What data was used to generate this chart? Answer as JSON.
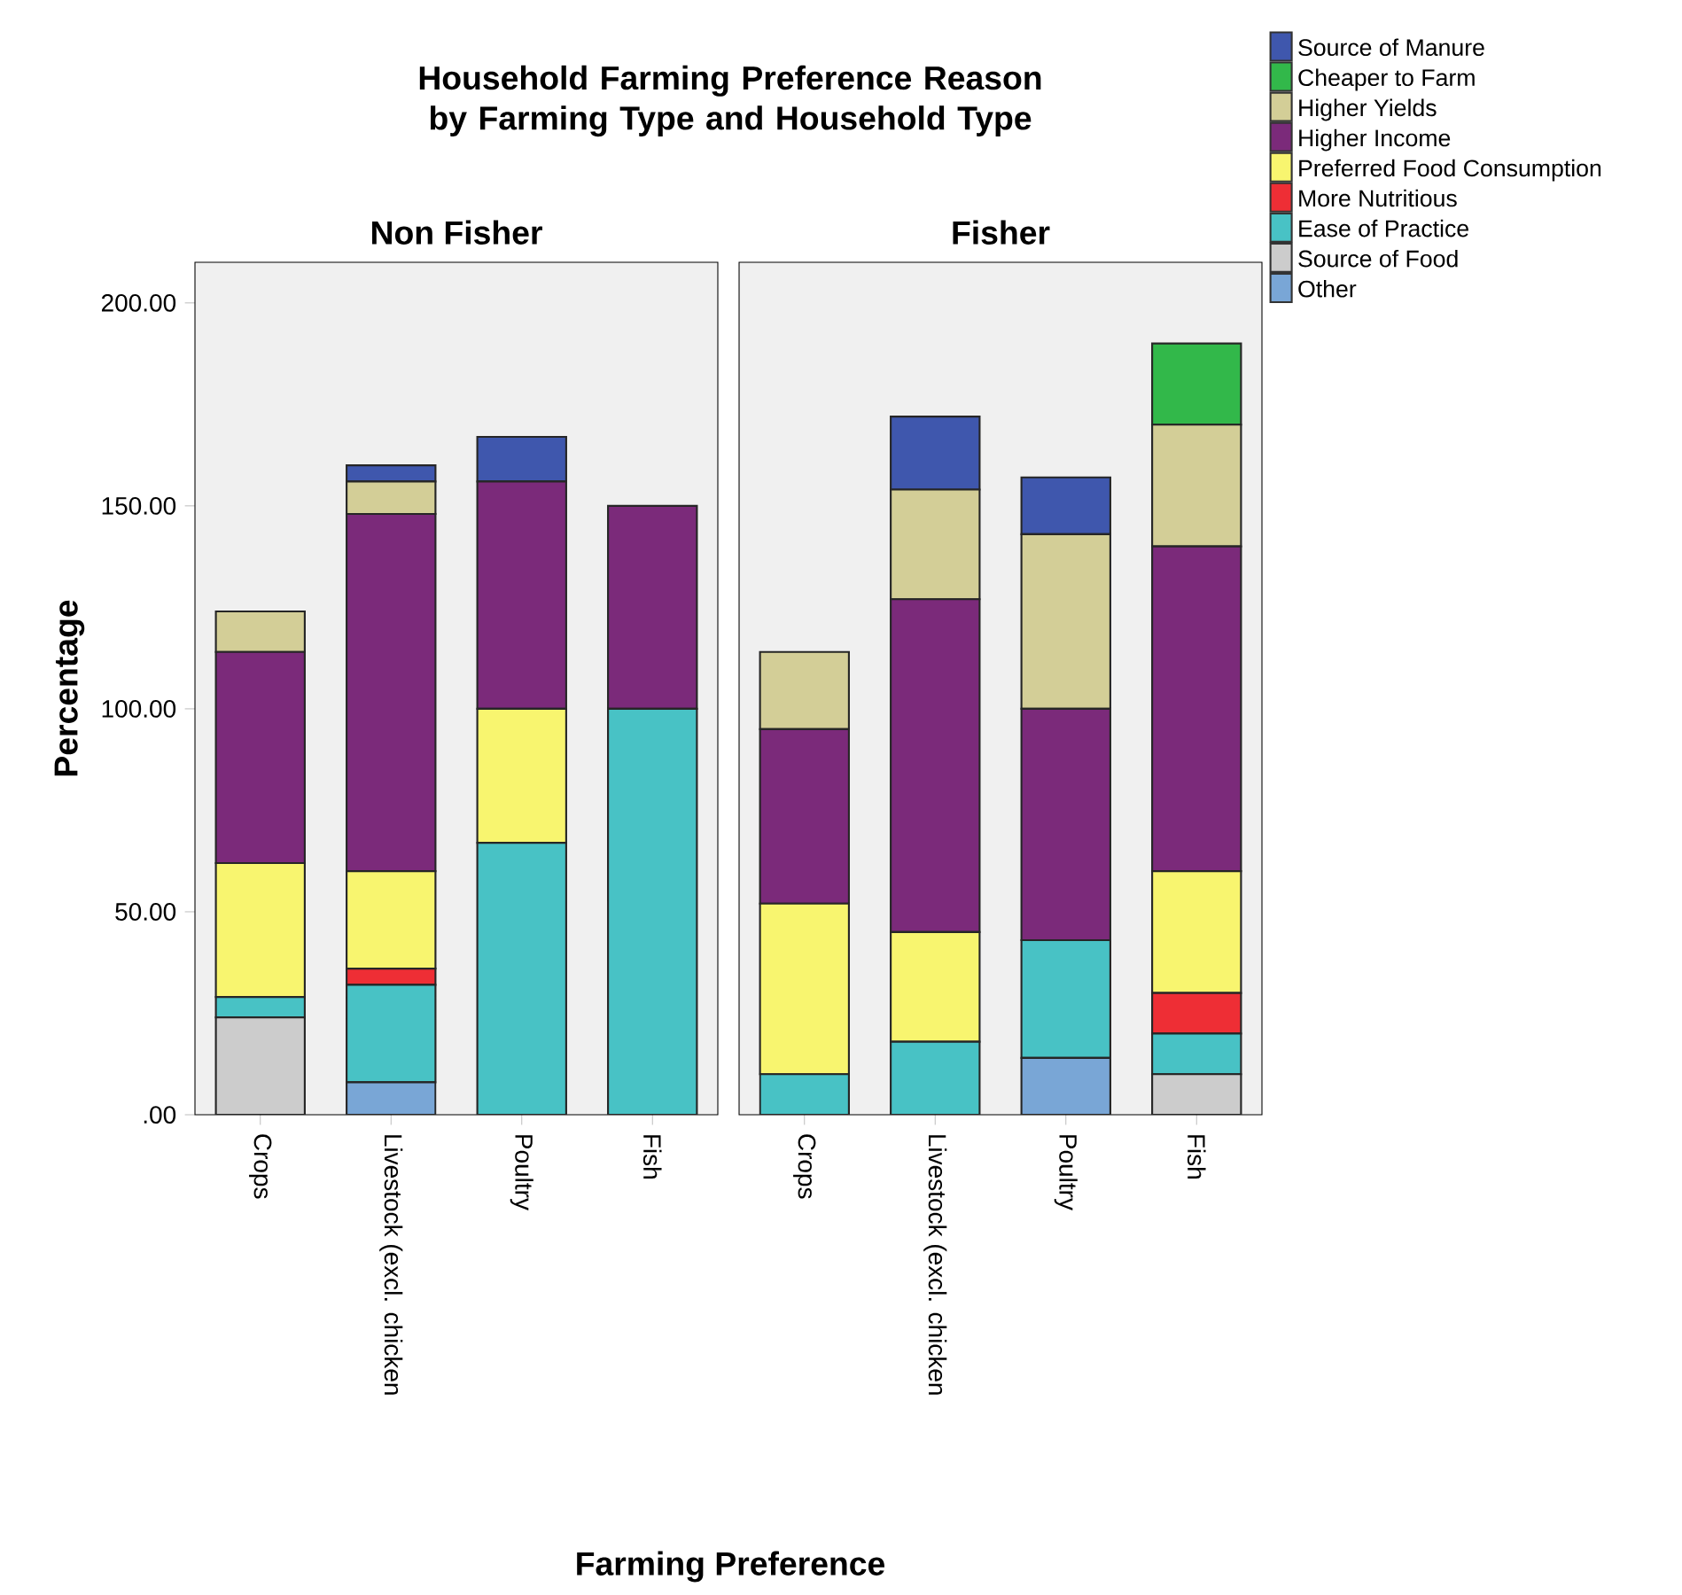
{
  "chart_data": [
    {
      "type": "bar",
      "title": "Household Farming Preference Reason by Farming Type and Household Type",
      "subtitle": "Non Fisher",
      "xlabel": "Farming Preference",
      "ylabel": "Percentage",
      "categories": [
        "Crops",
        "Livestock (excl. chicken",
        "Poultry",
        "Fish"
      ],
      "stacked": true,
      "ylim": [
        0,
        210
      ],
      "yticks": [
        {
          "value": 0,
          "label": ".00"
        },
        {
          "value": 50,
          "label": "50.00"
        },
        {
          "value": 100,
          "label": "100.00"
        },
        {
          "value": 150,
          "label": "150.00"
        },
        {
          "value": 200,
          "label": "200.00"
        }
      ],
      "series": [
        {
          "color": "#79a6d6",
          "values": [
            null,
            8,
            null,
            null
          ]
        },
        {
          "color": "#cccccc",
          "values": [
            24,
            null,
            null,
            null
          ]
        },
        {
          "color": "#48c2c5",
          "values": [
            5,
            24,
            67,
            100
          ]
        },
        {
          "color": "#ee2e35",
          "values": [
            null,
            4,
            null,
            null
          ]
        },
        {
          "color": "#f8f56f",
          "values": [
            33,
            24,
            33,
            null
          ]
        },
        {
          "color": "#7b2a7a",
          "values": [
            52,
            88,
            56,
            50
          ]
        },
        {
          "color": "#d3ce97",
          "values": [
            10,
            8,
            null,
            null
          ]
        },
        {
          "color": "#3f57ad",
          "values": [
            null,
            4,
            11,
            null
          ]
        }
      ]
    },
    {
      "type": "bar",
      "subtitle": "Fisher",
      "categories": [
        "Crops",
        "Livestock (excl. chicken",
        "Poultry",
        "Fish"
      ],
      "stacked": true,
      "ylim": [
        0,
        210
      ],
      "tick_labels": "x",
      "legend": "top right",
      "series": [
        {
          "name": "Other",
          "color": "#79a6d6",
          "values": [
            null,
            null,
            14,
            null
          ]
        },
        {
          "name": "Source of Food",
          "color": "#cccccc",
          "values": [
            null,
            null,
            null,
            10
          ]
        },
        {
          "name": "Ease of Practice",
          "color": "#48c2c5",
          "values": [
            10,
            18,
            29,
            10
          ]
        },
        {
          "name": "More Nutritious",
          "color": "#ee2e35",
          "values": [
            null,
            null,
            null,
            10
          ]
        },
        {
          "name": "Preferred Food Consumption",
          "color": "#f8f56f",
          "values": [
            42,
            27,
            null,
            30
          ]
        },
        {
          "name": "Higher Income",
          "color": "#7b2a7a",
          "values": [
            43,
            82,
            57,
            80
          ]
        },
        {
          "name": "Higher Yields",
          "color": "#d3ce97",
          "values": [
            19,
            27,
            43,
            30
          ]
        },
        {
          "name": "Cheaper to Farm",
          "color": "#32b84a",
          "values": [
            null,
            null,
            null,
            20
          ]
        },
        {
          "name": "Source of Manure",
          "color": "#3f57ad",
          "values": [
            null,
            18,
            14,
            null
          ]
        }
      ]
    }
  ]
}
